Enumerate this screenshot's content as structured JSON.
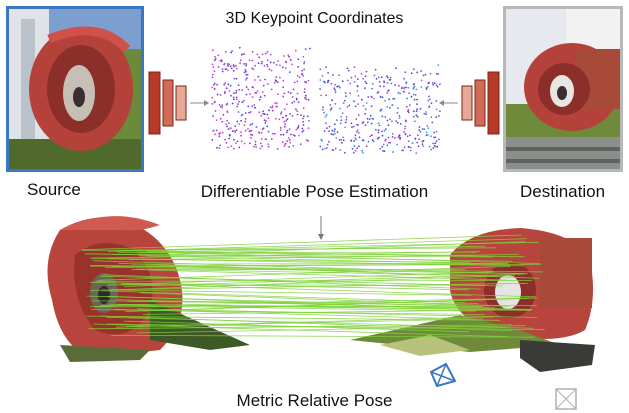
{
  "labels": {
    "top_title": "3D Keypoint Coordinates",
    "source": "Source",
    "destination": "Destination",
    "pose_estimation": "Differentiable Pose Estimation",
    "result": "Metric Relative Pose"
  },
  "colors": {
    "source_frame": "#3a78c2",
    "destination_frame": "#b8b8b8",
    "sculpture_red": "#c0413a",
    "match_lines": "#7fd23a",
    "encoder_dark": "#b63a27",
    "encoder_light": "#e39a86",
    "camera_source": "#3a78c2",
    "camera_destination": "#b0b0b0"
  }
}
